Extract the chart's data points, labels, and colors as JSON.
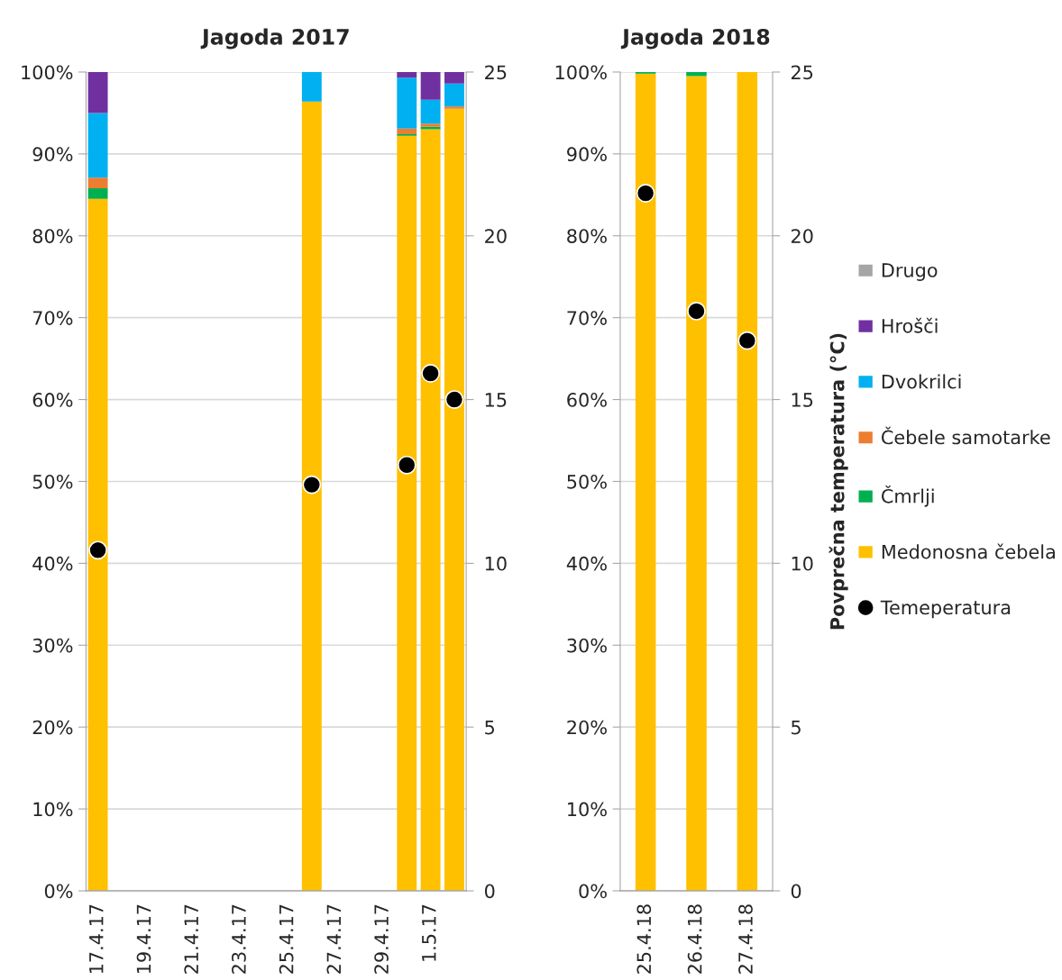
{
  "chart_data": [
    {
      "type": "bar",
      "title": "Jagoda 2017",
      "stacked": true,
      "x": [
        "2017-04-17",
        "2017-04-26",
        "2017-04-30",
        "2017-05-01",
        "2017-05-02"
      ],
      "xlim": [
        "2017-04-16T12:00",
        "2017-05-02T12:00"
      ],
      "xticks": [
        {
          "value": "2017-04-17",
          "label": "17.4.17"
        },
        {
          "value": "2017-04-19",
          "label": "19.4.17"
        },
        {
          "value": "2017-04-21",
          "label": "21.4.17"
        },
        {
          "value": "2017-04-23",
          "label": "23.4.17"
        },
        {
          "value": "2017-04-25",
          "label": "25.4.17"
        },
        {
          "value": "2017-04-27",
          "label": "27.4.17"
        },
        {
          "value": "2017-04-29",
          "label": "29.4.17"
        },
        {
          "value": "2017-05-01",
          "label": "1.5.17"
        }
      ],
      "ylim": [
        0,
        100
      ],
      "yticks": [
        {
          "value": 0,
          "label": "0%"
        },
        {
          "value": 10,
          "label": "10%"
        },
        {
          "value": 20,
          "label": "20%"
        },
        {
          "value": 30,
          "label": "30%"
        },
        {
          "value": 40,
          "label": "40%"
        },
        {
          "value": 50,
          "label": "50%"
        },
        {
          "value": 60,
          "label": "60%"
        },
        {
          "value": 70,
          "label": "70%"
        },
        {
          "value": 80,
          "label": "80%"
        },
        {
          "value": 90,
          "label": "90%"
        },
        {
          "value": 100,
          "label": "100%"
        }
      ],
      "y2lim": [
        0,
        25
      ],
      "y2ticks": [
        0,
        5,
        10,
        15,
        20,
        25
      ],
      "grid": "y",
      "series": [
        {
          "color": "#ffc000",
          "values": [
            84.5,
            96.4,
            92.2,
            93.0,
            95.5
          ]
        },
        {
          "color": "#00b050",
          "values": [
            1.3,
            0,
            0.2,
            0.3,
            0
          ]
        },
        {
          "color": "#ed7d31",
          "values": [
            1.3,
            0,
            0.7,
            0.4,
            0.3
          ]
        },
        {
          "color": "#00b0f0",
          "values": [
            7.9,
            3.6,
            6.2,
            2.9,
            2.8
          ]
        },
        {
          "color": "#7030a0",
          "values": [
            5.0,
            0,
            0.7,
            3.4,
            1.4
          ]
        },
        {
          "color": "#a5a5a5",
          "values": [
            0,
            0,
            0,
            0,
            0
          ]
        },
        {
          "type": "scatter",
          "axis": "y2",
          "color": "#000000",
          "marker": "circle",
          "values": [
            10.4,
            12.4,
            13.0,
            15.8,
            15.0
          ]
        }
      ]
    },
    {
      "type": "bar",
      "title": "Jagoda 2018",
      "stacked": true,
      "categories": [
        "25.4.18",
        "26.4.18",
        "27.4.18"
      ],
      "ylim": [
        0,
        100
      ],
      "yticks": [
        {
          "value": 0,
          "label": "0%"
        },
        {
          "value": 10,
          "label": "10%"
        },
        {
          "value": 20,
          "label": "20%"
        },
        {
          "value": 30,
          "label": "30%"
        },
        {
          "value": 40,
          "label": "40%"
        },
        {
          "value": 50,
          "label": "50%"
        },
        {
          "value": 60,
          "label": "60%"
        },
        {
          "value": 70,
          "label": "70%"
        },
        {
          "value": 80,
          "label": "80%"
        },
        {
          "value": 90,
          "label": "90%"
        },
        {
          "value": 100,
          "label": "100%"
        }
      ],
      "y2lim": [
        0,
        25
      ],
      "y2ticks": [
        0,
        5,
        10,
        15,
        20,
        25
      ],
      "y2label": "Povprečna temperatura (°C)",
      "grid": "y",
      "legend": "right",
      "series": [
        {
          "name": "Medonosna čebela",
          "color": "#ffc000",
          "values": [
            99.8,
            99.5,
            100
          ]
        },
        {
          "name": "Čmrlji",
          "color": "#00b050",
          "values": [
            0.2,
            0.5,
            0
          ]
        },
        {
          "name": "Čebele samotarke",
          "color": "#ed7d31",
          "values": [
            0,
            0,
            0
          ]
        },
        {
          "name": "Dvokrilci",
          "color": "#00b0f0",
          "values": [
            0,
            0,
            0
          ]
        },
        {
          "name": "Hrošči",
          "color": "#7030a0",
          "values": [
            0,
            0,
            0
          ]
        },
        {
          "name": "Drugo",
          "color": "#a5a5a5",
          "values": [
            0,
            0,
            0
          ]
        },
        {
          "name": "Temeperatura",
          "type": "scatter",
          "axis": "y2",
          "color": "#000000",
          "marker": "circle",
          "values": [
            21.3,
            17.7,
            16.8
          ]
        }
      ]
    }
  ]
}
